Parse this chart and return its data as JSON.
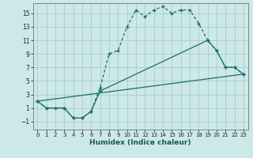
{
  "xlabel": "Humidex (Indice chaleur)",
  "xlim": [
    -0.5,
    23.5
  ],
  "ylim": [
    -2.2,
    16.5
  ],
  "xticks": [
    0,
    1,
    2,
    3,
    4,
    5,
    6,
    7,
    8,
    9,
    10,
    11,
    12,
    13,
    14,
    15,
    16,
    17,
    18,
    19,
    20,
    21,
    22,
    23
  ],
  "yticks": [
    -1,
    1,
    3,
    5,
    7,
    9,
    11,
    13,
    15
  ],
  "bg_color": "#cce8e8",
  "grid_color": "#aacccc",
  "line_color": "#1a7060",
  "line1_x": [
    0,
    1,
    2,
    3,
    4,
    5,
    6,
    7,
    8,
    9,
    10,
    11,
    12,
    13,
    14,
    15,
    16,
    17,
    18,
    19,
    20,
    21,
    22,
    23
  ],
  "line1_y": [
    2,
    1,
    1,
    1,
    -0.5,
    -0.5,
    0.5,
    4,
    9,
    9.5,
    13,
    15.5,
    14.5,
    15.5,
    16,
    15,
    15.5,
    15.5,
    13.5,
    11,
    9.5,
    7,
    7,
    6
  ],
  "line2_x": [
    0,
    1,
    3,
    4,
    5,
    6,
    7,
    19,
    20,
    21,
    22,
    23
  ],
  "line2_y": [
    2,
    1,
    1,
    -0.5,
    -0.5,
    0.5,
    3.5,
    11,
    9.5,
    7,
    7,
    6
  ],
  "line3_x": [
    0,
    23
  ],
  "line3_y": [
    2,
    6
  ]
}
